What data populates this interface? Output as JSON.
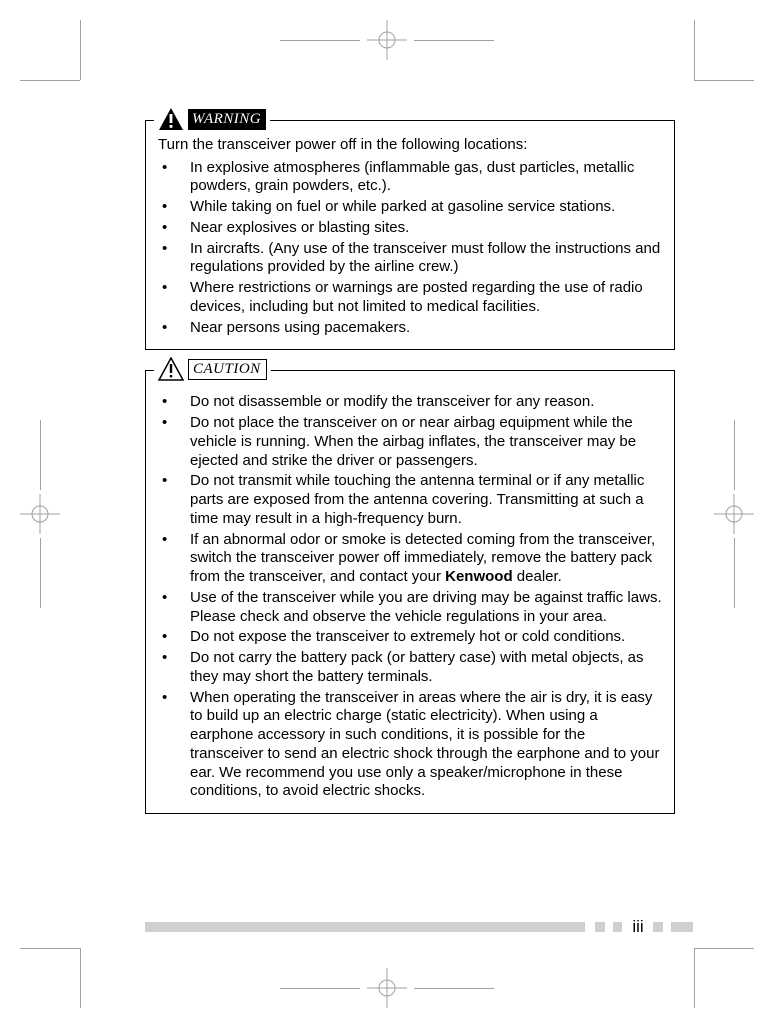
{
  "labels": {
    "warning": "WARNING",
    "caution": "CAUTION"
  },
  "warning_box": {
    "lead": "Turn the transceiver power off in the following locations:",
    "items": [
      "In explosive atmospheres (inflammable gas, dust particles, metallic powders, grain powders, etc.).",
      "While taking on fuel or while parked at gasoline service stations.",
      "Near explosives or blasting sites.",
      "In aircrafts. (Any use of the transceiver must follow the instructions and regulations provided by the airline crew.)",
      "Where restrictions or warnings are posted regarding the use of radio devices, including but not limited to medical facilities.",
      "Near persons using pacemakers."
    ]
  },
  "caution_box": {
    "items": [
      "Do not disassemble or modify the transceiver for any reason.",
      "Do not place the transceiver on or near airbag equipment while the vehicle is running.  When the airbag inflates, the transceiver may be ejected and strike the driver or passengers.",
      "Do not transmit while touching the antenna terminal or if any metallic parts are exposed from the antenna covering.  Transmitting at such a time may result in a high-frequency burn.",
      "If an abnormal odor or smoke is detected coming from the transceiver, switch the transceiver power off immediately, remove the battery pack from the transceiver, and contact your <b>Kenwood</b> dealer.",
      "Use of the transceiver while you are driving may be against traffic laws.  Please check and observe the vehicle regulations in your area.",
      "Do not expose the transceiver to extremely hot or cold conditions.",
      "Do not carry the battery pack (or battery case) with metal objects, as they may short the battery terminals.",
      "When operating the transceiver in areas where the air is dry, it is easy to build up an electric charge (static electricity).  When using a earphone accessory in such conditions, it is possible for the transceiver to send an electric shock through the earphone and to your ear.  We recommend you use only a speaker/microphone in these conditions, to avoid electric shocks."
    ]
  },
  "page_number": "iii",
  "colors": {
    "text": "#000000",
    "bg": "#ffffff",
    "footer_bar": "#cfcfcf",
    "crop_lines": "#a0a0a0"
  }
}
